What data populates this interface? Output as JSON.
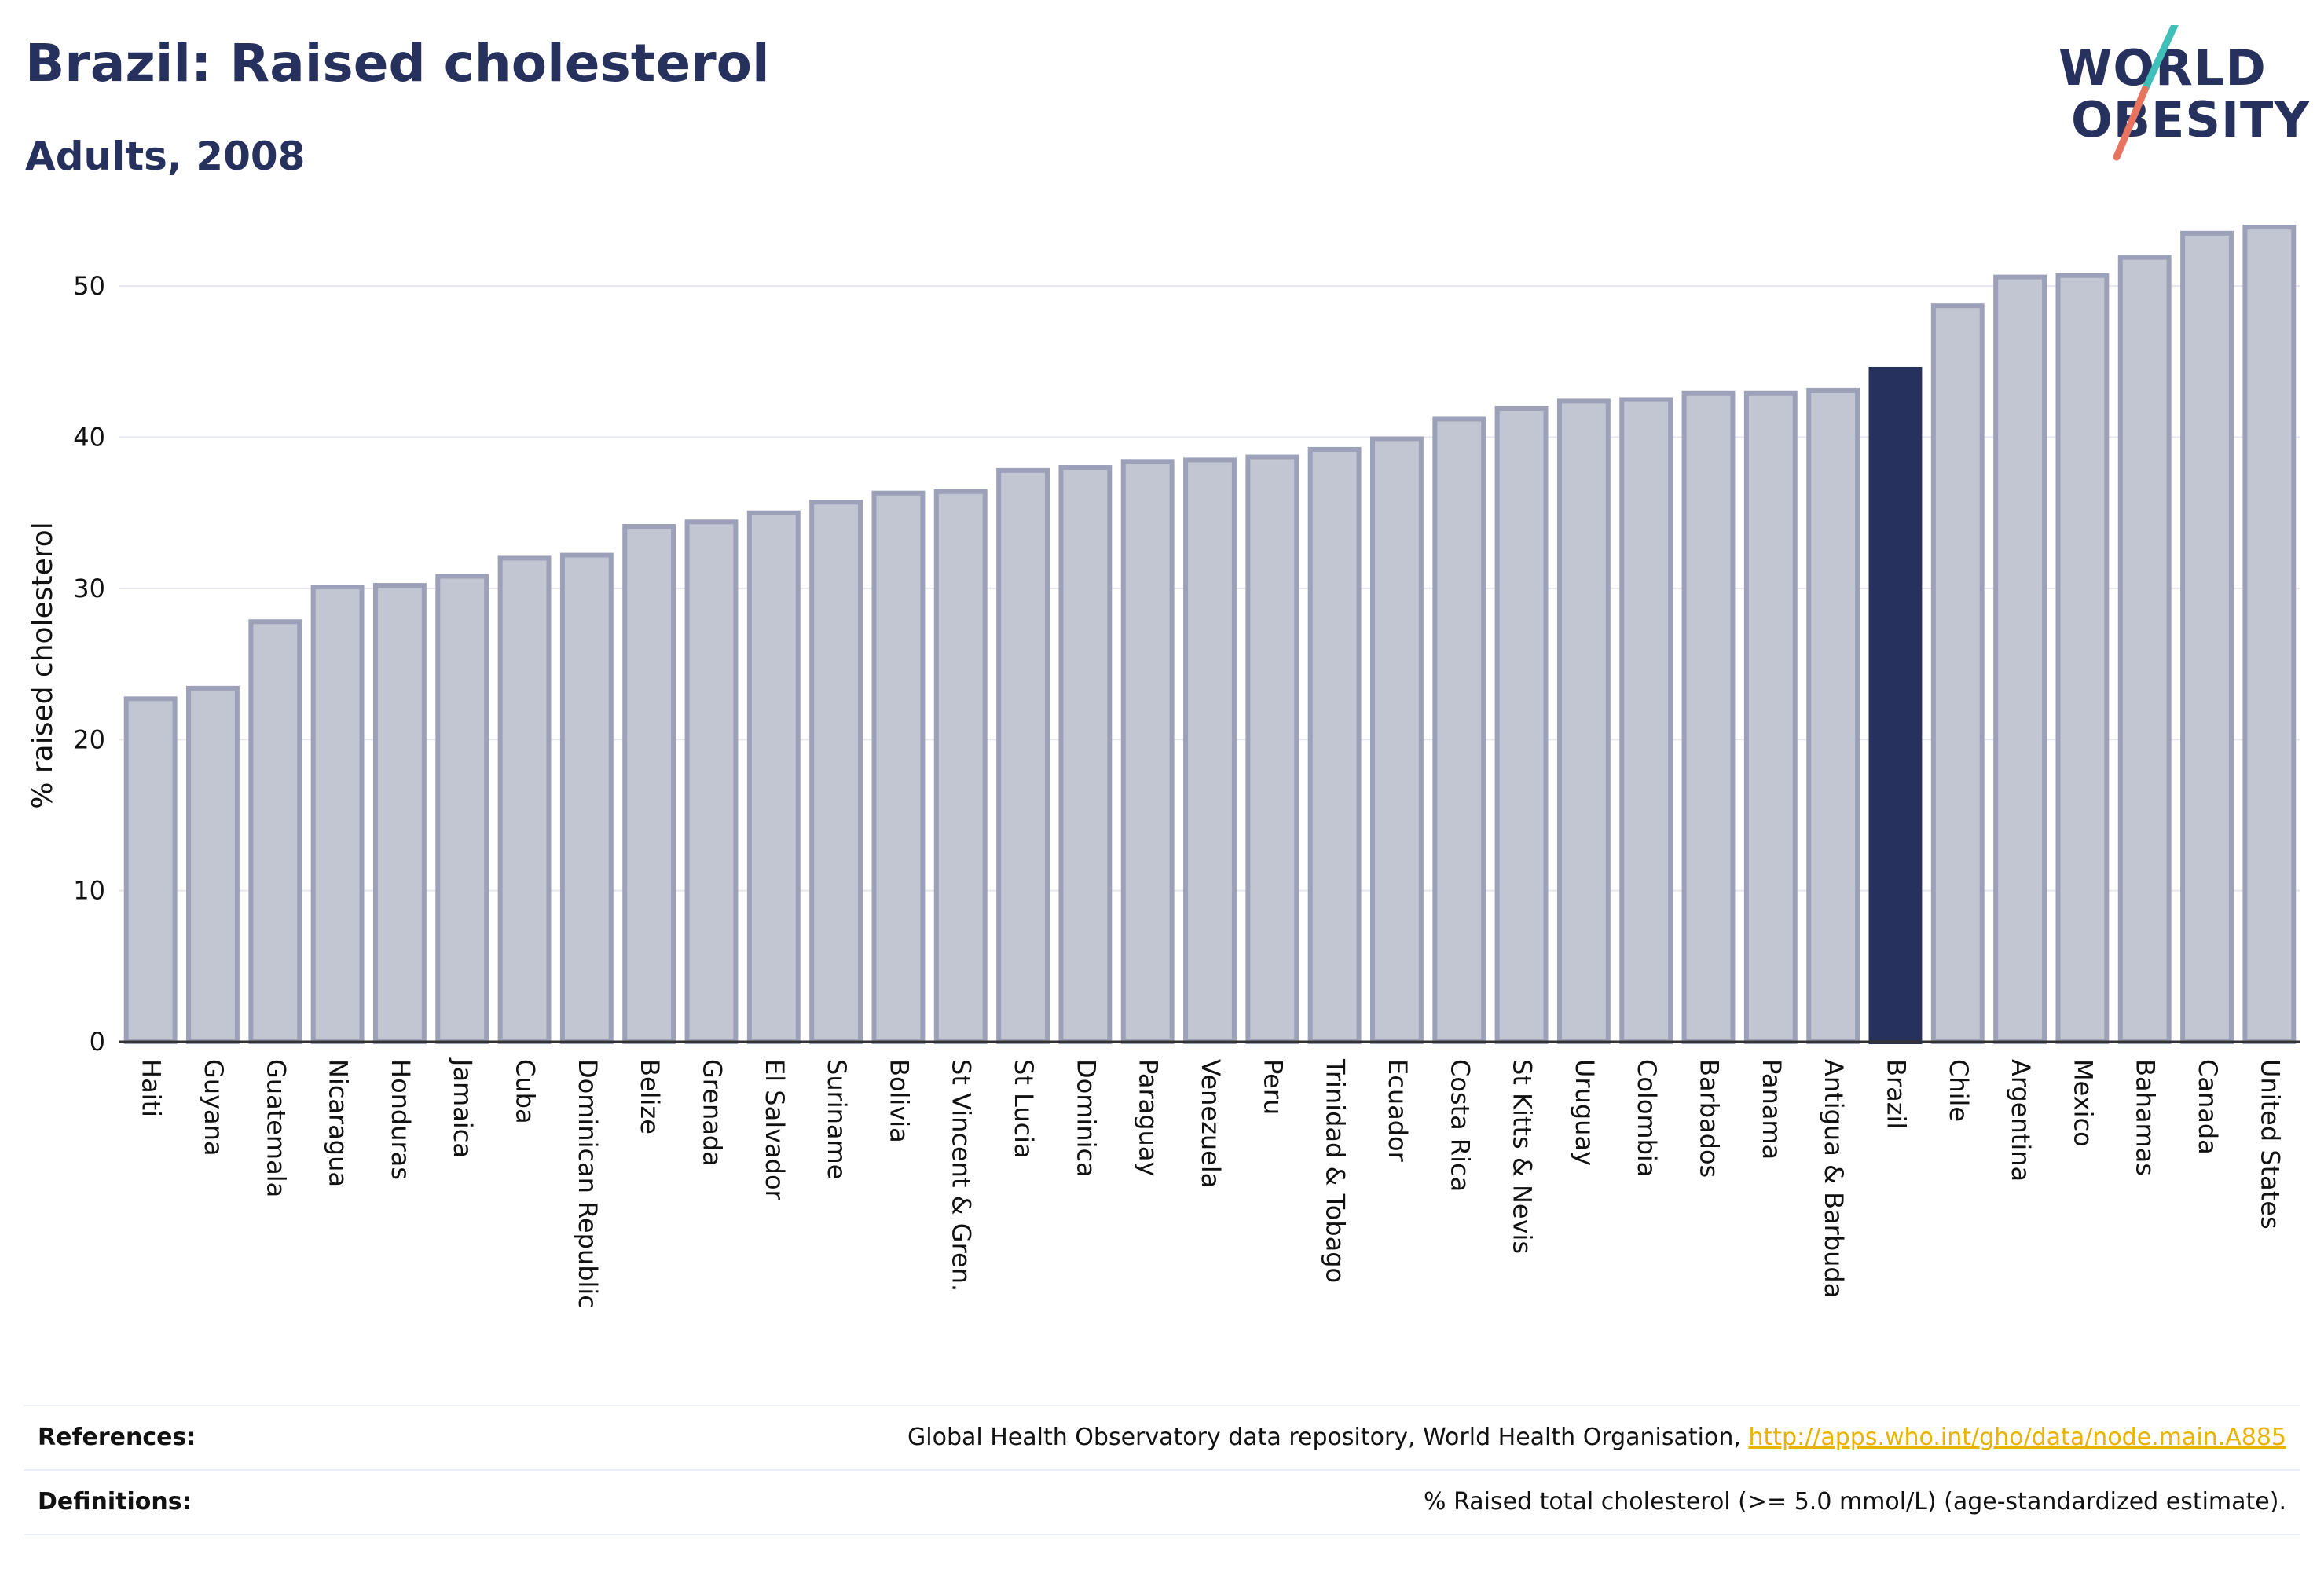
{
  "header": {
    "title": "Brazil: Raised cholesterol",
    "subtitle": "Adults, 2008"
  },
  "logo": {
    "line1": "WORLD",
    "line2": "OBESITY",
    "colors": {
      "text": "#27315d",
      "slash_top": "#3fbfb8",
      "slash_bottom": "#e8735f"
    }
  },
  "chart_data": {
    "type": "bar",
    "ylabel": "% raised cholesterol",
    "ylim": [
      0,
      55
    ],
    "yticks": [
      0,
      10,
      20,
      30,
      40,
      50
    ],
    "grid": true,
    "highlight": "Brazil",
    "colors": {
      "bar": "#c2c5d2",
      "bar_edge": "#9ca1b9",
      "highlight": "#27315d",
      "grid": "#e5e7ee"
    },
    "categories": [
      "Haiti",
      "Guyana",
      "Guatemala",
      "Nicaragua",
      "Honduras",
      "Jamaica",
      "Cuba",
      "Dominican Republic",
      "Belize",
      "Grenada",
      "El Salvador",
      "Suriname",
      "Bolivia",
      "St Vincent & Gren.",
      "St Lucia",
      "Dominica",
      "Paraguay",
      "Venezuela",
      "Peru",
      "Trinidad & Tobago",
      "Ecuador",
      "Costa Rica",
      "St Kitts & Nevis",
      "Uruguay",
      "Colombia",
      "Barbados",
      "Panama",
      "Antigua & Barbuda",
      "Brazil",
      "Chile",
      "Argentina",
      "Mexico",
      "Bahamas",
      "Canada",
      "United States"
    ],
    "values": [
      22.7,
      23.4,
      27.8,
      30.1,
      30.2,
      30.8,
      32.0,
      32.2,
      34.1,
      34.4,
      35.0,
      35.7,
      36.3,
      36.4,
      37.8,
      38.0,
      38.4,
      38.5,
      38.7,
      39.2,
      39.9,
      41.2,
      41.9,
      42.4,
      42.5,
      42.9,
      42.9,
      43.1,
      44.5,
      48.7,
      50.6,
      50.7,
      51.9,
      53.5,
      53.9
    ]
  },
  "footer": {
    "references_label": "References:",
    "references_text": "Global Health Observatory data repository, World Health Organisation, ",
    "references_link": "http://apps.who.int/gho/data/node.main.A885",
    "definitions_label": "Definitions:",
    "definitions_text": "% Raised total cholesterol (>= 5.0 mmol/L) (age-standardized estimate)."
  }
}
